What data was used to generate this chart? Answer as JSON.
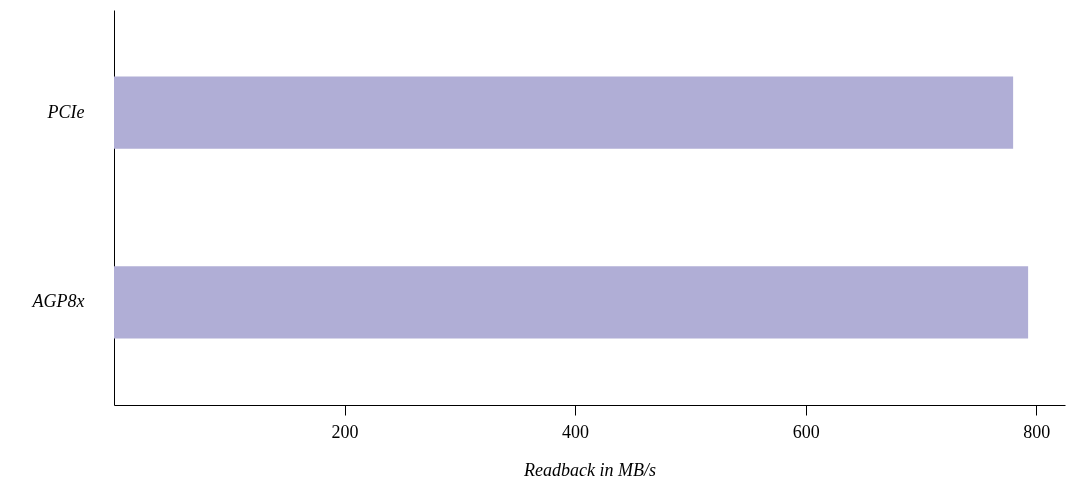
{
  "chart_data": {
    "type": "bar",
    "orientation": "horizontal",
    "xlabel": "Readback in MB/s",
    "categories": [
      "PCIe",
      "AGP8x"
    ],
    "values": [
      780,
      793
    ],
    "color": "#b0aed6",
    "xlim": [
      0,
      825
    ],
    "xticks": [
      200,
      400,
      600,
      800
    ],
    "grid": false
  }
}
